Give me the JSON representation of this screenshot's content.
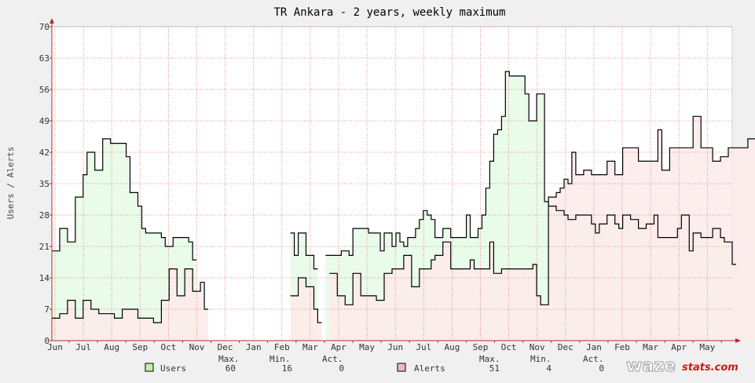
{
  "chart_data": {
    "type": "line",
    "title": "TR Ankara - 2 years, weekly maximum",
    "ylabel": "Users / Alerts",
    "ylim": [
      0,
      70
    ],
    "yticks": [
      0,
      7,
      14,
      21,
      28,
      35,
      42,
      49,
      56,
      63,
      70
    ],
    "x_tick_labels": [
      "Jun",
      "Jul",
      "Aug",
      "Sep",
      "Oct",
      "Nov",
      "Dec",
      "Jan",
      "Feb",
      "Mar",
      "Apr",
      "May",
      "Jun",
      "Jul",
      "Aug",
      "Sep",
      "Oct",
      "Nov",
      "Dec",
      "Jan",
      "Feb",
      "Mar",
      "Apr",
      "May"
    ],
    "grid": true,
    "series": [
      {
        "name": "Users",
        "color": "#000000",
        "fill": "#e9fbe9",
        "swatch": "#c4f0b0",
        "values": [
          20,
          20,
          25,
          25,
          22,
          22,
          32,
          32,
          37,
          42,
          42,
          38,
          38,
          45,
          45,
          44,
          44,
          44,
          44,
          41,
          33,
          33,
          30,
          25,
          24,
          24,
          24,
          24,
          23,
          21,
          21,
          23,
          23,
          23,
          23,
          22,
          18,
          null,
          null,
          null,
          null,
          null,
          null,
          null,
          null,
          null,
          null,
          null,
          null,
          null,
          null,
          null,
          null,
          null,
          null,
          null,
          null,
          null,
          null,
          null,
          null,
          24,
          19,
          24,
          24,
          19,
          19,
          16,
          null,
          null,
          19,
          19,
          19,
          19,
          20,
          20,
          19,
          25,
          25,
          25,
          25,
          24,
          24,
          24,
          20,
          24,
          24,
          21,
          24,
          22,
          21,
          23,
          23,
          25,
          27,
          29,
          28,
          27,
          23,
          23,
          25,
          25,
          23,
          23,
          23,
          23,
          28,
          23,
          23,
          25,
          28,
          34,
          40,
          46,
          47,
          50,
          60,
          59,
          59,
          59,
          59,
          55,
          49,
          49,
          55,
          55,
          31,
          30,
          30,
          29,
          29,
          28,
          27,
          27,
          28,
          28,
          28,
          28,
          26,
          24,
          26,
          26,
          28,
          28,
          26,
          25,
          28,
          28,
          27,
          27,
          25,
          25,
          26,
          26,
          28,
          23,
          23,
          23,
          23,
          23,
          25,
          28,
          28,
          20,
          24,
          24,
          23,
          23,
          23,
          25,
          25,
          23,
          22,
          22,
          17
        ],
        "max": "60",
        "min": "16",
        "act": "0"
      },
      {
        "name": "Alerts",
        "color": "#000000",
        "fill": "#fdeaea",
        "swatch": "#f4b8b8",
        "values": [
          5,
          5,
          6,
          6,
          9,
          9,
          5,
          5,
          9,
          9,
          7,
          7,
          6,
          6,
          6,
          6,
          5,
          5,
          7,
          7,
          7,
          7,
          5,
          5,
          5,
          5,
          4,
          4,
          9,
          9,
          16,
          16,
          10,
          10,
          16,
          16,
          11,
          11,
          13,
          7,
          null,
          null,
          null,
          null,
          null,
          null,
          null,
          null,
          null,
          null,
          null,
          null,
          null,
          null,
          null,
          null,
          null,
          null,
          null,
          null,
          null,
          10,
          10,
          14,
          14,
          12,
          12,
          7,
          4,
          null,
          null,
          15,
          15,
          10,
          10,
          8,
          8,
          15,
          15,
          10,
          10,
          10,
          10,
          9,
          9,
          15,
          15,
          16,
          16,
          16,
          19,
          19,
          12,
          12,
          16,
          16,
          16,
          18,
          19,
          19,
          22,
          22,
          16,
          16,
          16,
          16,
          16,
          18,
          16,
          16,
          16,
          16,
          22,
          15,
          15,
          16,
          16,
          16,
          16,
          16,
          16,
          16,
          16,
          17,
          10,
          8,
          8,
          32,
          32,
          33,
          34,
          36,
          35,
          42,
          37,
          37,
          38,
          38,
          37,
          37,
          37,
          37,
          40,
          40,
          37,
          37,
          43,
          43,
          43,
          43,
          40,
          40,
          40,
          40,
          40,
          47,
          38,
          38,
          43,
          43,
          43,
          43,
          43,
          43,
          50,
          50,
          43,
          43,
          43,
          40,
          40,
          41,
          41,
          43,
          43,
          43,
          43,
          43,
          45,
          45,
          43
        ],
        "max": "51",
        "min": "4",
        "act": "0"
      }
    ],
    "legend": {
      "placement": "bottom",
      "headers": {
        "max": "Max.",
        "min": "Min.",
        "act": "Act."
      }
    }
  },
  "brand": {
    "name": "wazestats.com",
    "part1": "waze",
    "part2": "stats.com"
  }
}
